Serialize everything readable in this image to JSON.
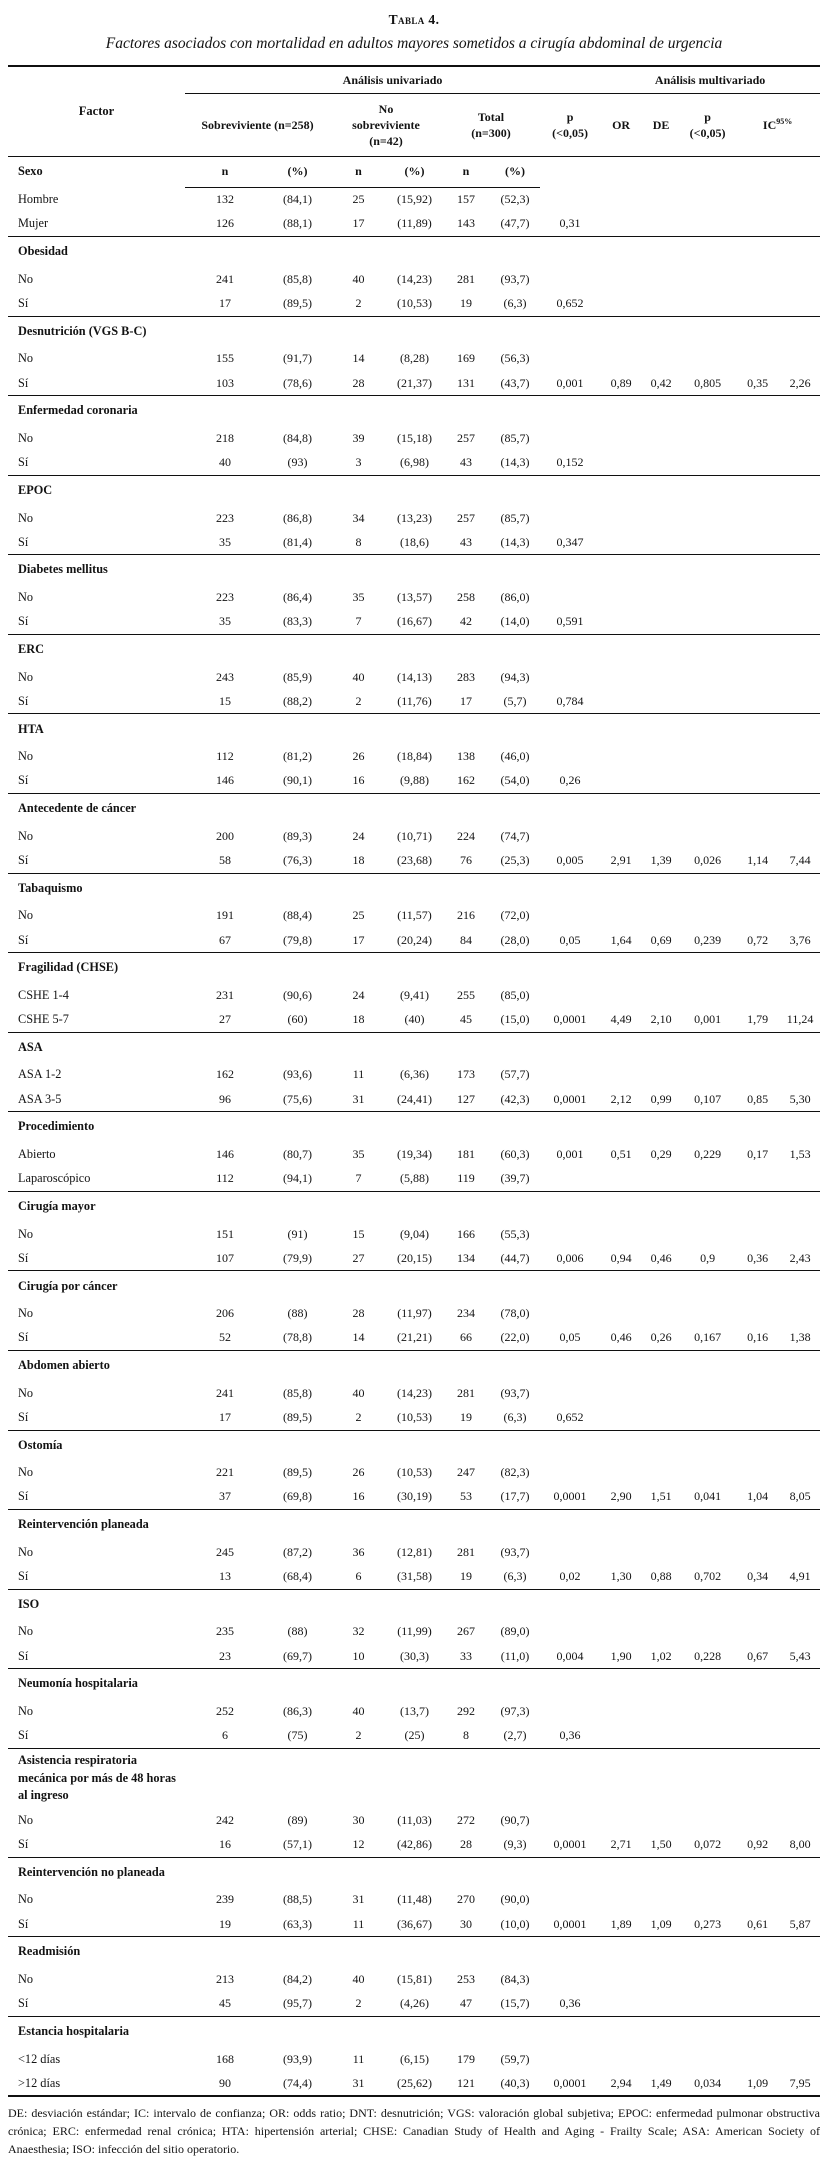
{
  "title": "Tabla 4.",
  "subtitle": "Factores asociados con mortalidad en adultos mayores sometidos a cirugía abdominal de urgencia",
  "header": {
    "factor": "Factor",
    "group_univariate": "Análisis univariado",
    "group_multivariate": "Análisis multivariado",
    "col_survivor": "Sobreviviente (n=258)",
    "col_nonsurvivor": "No\nsobreviviente\n(n=42)",
    "col_total": "Total\n(n=300)",
    "col_p_uni": "p\n(<0,05)",
    "col_or": "OR",
    "col_de": "DE",
    "col_p_multi": "p\n(<0,05)",
    "col_ic": "IC",
    "col_ic_sup": "95%",
    "sub_n": "n",
    "sub_pct": "(%)"
  },
  "sections": [
    {
      "name": "Sexo",
      "rows": [
        {
          "label": "Hombre",
          "cells": [
            "132",
            "(84,1)",
            "25",
            "(15,92)",
            "157",
            "(52,3)"
          ]
        },
        {
          "label": "Mujer",
          "cells": [
            "126",
            "(88,1)",
            "17",
            "(11,89)",
            "143",
            "(47,7)",
            "0,31"
          ]
        }
      ]
    },
    {
      "name": "Obesidad",
      "rows": [
        {
          "label": "No",
          "cells": [
            "241",
            "(85,8)",
            "40",
            "(14,23)",
            "281",
            "(93,7)"
          ]
        },
        {
          "label": "Sí",
          "cells": [
            "17",
            "(89,5)",
            "2",
            "(10,53)",
            "19",
            "(6,3)",
            "0,652"
          ]
        }
      ]
    },
    {
      "name": "Desnutrición (VGS B-C)",
      "rows": [
        {
          "label": "No",
          "cells": [
            "155",
            "(91,7)",
            "14",
            "(8,28)",
            "169",
            "(56,3)"
          ]
        },
        {
          "label": "Sí",
          "cells": [
            "103",
            "(78,6)",
            "28",
            "(21,37)",
            "131",
            "(43,7)",
            "0,001",
            "0,89",
            "0,42",
            "0,805",
            "0,35",
            "2,26"
          ]
        }
      ]
    },
    {
      "name": "Enfermedad coronaria",
      "rows": [
        {
          "label": "No",
          "cells": [
            "218",
            "(84,8)",
            "39",
            "(15,18)",
            "257",
            "(85,7)"
          ]
        },
        {
          "label": "Sí",
          "cells": [
            "40",
            "(93)",
            "3",
            "(6,98)",
            "43",
            "(14,3)",
            "0,152"
          ]
        }
      ]
    },
    {
      "name": "EPOC",
      "rows": [
        {
          "label": "No",
          "cells": [
            "223",
            "(86,8)",
            "34",
            "(13,23)",
            "257",
            "(85,7)"
          ]
        },
        {
          "label": "Sí",
          "cells": [
            "35",
            "(81,4)",
            "8",
            "(18,6)",
            "43",
            "(14,3)",
            "0,347"
          ]
        }
      ]
    },
    {
      "name": "Diabetes mellitus",
      "rows": [
        {
          "label": "No",
          "cells": [
            "223",
            "(86,4)",
            "35",
            "(13,57)",
            "258",
            "(86,0)"
          ]
        },
        {
          "label": "Sí",
          "cells": [
            "35",
            "(83,3)",
            "7",
            "(16,67)",
            "42",
            "(14,0)",
            "0,591"
          ]
        }
      ]
    },
    {
      "name": "ERC",
      "rows": [
        {
          "label": "No",
          "cells": [
            "243",
            "(85,9)",
            "40",
            "(14,13)",
            "283",
            "(94,3)"
          ]
        },
        {
          "label": "Sí",
          "cells": [
            "15",
            "(88,2)",
            "2",
            "(11,76)",
            "17",
            "(5,7)",
            "0,784"
          ]
        }
      ]
    },
    {
      "name": "HTA",
      "rows": [
        {
          "label": "No",
          "cells": [
            "112",
            "(81,2)",
            "26",
            "(18,84)",
            "138",
            "(46,0)"
          ]
        },
        {
          "label": "Sí",
          "cells": [
            "146",
            "(90,1)",
            "16",
            "(9,88)",
            "162",
            "(54,0)",
            "0,26"
          ]
        }
      ]
    },
    {
      "name": "Antecedente de cáncer",
      "rows": [
        {
          "label": "No",
          "cells": [
            "200",
            "(89,3)",
            "24",
            "(10,71)",
            "224",
            "(74,7)"
          ]
        },
        {
          "label": "Sí",
          "cells": [
            "58",
            "(76,3)",
            "18",
            "(23,68)",
            "76",
            "(25,3)",
            "0,005",
            "2,91",
            "1,39",
            "0,026",
            "1,14",
            "7,44"
          ]
        }
      ]
    },
    {
      "name": "Tabaquismo",
      "rows": [
        {
          "label": "No",
          "cells": [
            "191",
            "(88,4)",
            "25",
            "(11,57)",
            "216",
            "(72,0)"
          ]
        },
        {
          "label": "Sí",
          "cells": [
            "67",
            "(79,8)",
            "17",
            "(20,24)",
            "84",
            "(28,0)",
            "0,05",
            "1,64",
            "0,69",
            "0,239",
            "0,72",
            "3,76"
          ]
        }
      ]
    },
    {
      "name": "Fragilidad (CHSE)",
      "rows": [
        {
          "label": "CSHE 1-4",
          "cells": [
            "231",
            "(90,6)",
            "24",
            "(9,41)",
            "255",
            "(85,0)"
          ]
        },
        {
          "label": "CSHE  5-7",
          "cells": [
            "27",
            "(60)",
            "18",
            "(40)",
            "45",
            "(15,0)",
            "0,0001",
            "4,49",
            "2,10",
            "0,001",
            "1,79",
            "11,24"
          ]
        }
      ]
    },
    {
      "name": "ASA",
      "rows": [
        {
          "label": "ASA 1-2",
          "cells": [
            "162",
            "(93,6)",
            "11",
            "(6,36)",
            "173",
            "(57,7)"
          ]
        },
        {
          "label": "ASA 3-5",
          "cells": [
            "96",
            "(75,6)",
            "31",
            "(24,41)",
            "127",
            "(42,3)",
            "0,0001",
            "2,12",
            "0,99",
            "0,107",
            "0,85",
            "5,30"
          ]
        }
      ]
    },
    {
      "name": "Procedimiento",
      "rows": [
        {
          "label": "Abierto",
          "cells": [
            "146",
            "(80,7)",
            "35",
            "(19,34)",
            "181",
            "(60,3)",
            "0,001",
            "0,51",
            "0,29",
            "0,229",
            "0,17",
            "1,53"
          ]
        },
        {
          "label": "Laparoscópico",
          "cells": [
            "112",
            "(94,1)",
            "7",
            "(5,88)",
            "119",
            "(39,7)"
          ]
        }
      ]
    },
    {
      "name": "Cirugía mayor",
      "rows": [
        {
          "label": "No",
          "cells": [
            "151",
            "(91)",
            "15",
            "(9,04)",
            "166",
            "(55,3)"
          ]
        },
        {
          "label": "Sí",
          "cells": [
            "107",
            "(79,9)",
            "27",
            "(20,15)",
            "134",
            "(44,7)",
            "0,006",
            "0,94",
            "0,46",
            "0,9",
            "0,36",
            "2,43"
          ]
        }
      ]
    },
    {
      "name": "Cirugía por cáncer",
      "rows": [
        {
          "label": "No",
          "cells": [
            "206",
            "(88)",
            "28",
            "(11,97)",
            "234",
            "(78,0)"
          ]
        },
        {
          "label": "Sí",
          "cells": [
            "52",
            "(78,8)",
            "14",
            "(21,21)",
            "66",
            "(22,0)",
            "0,05",
            "0,46",
            "0,26",
            "0,167",
            "0,16",
            "1,38"
          ]
        }
      ]
    },
    {
      "name": "Abdomen abierto",
      "rows": [
        {
          "label": "No",
          "cells": [
            "241",
            "(85,8)",
            "40",
            "(14,23)",
            "281",
            "(93,7)"
          ]
        },
        {
          "label": "Sí",
          "cells": [
            "17",
            "(89,5)",
            "2",
            "(10,53)",
            "19",
            "(6,3)",
            "0,652"
          ]
        }
      ]
    },
    {
      "name": "Ostomía",
      "rows": [
        {
          "label": "No",
          "cells": [
            "221",
            "(89,5)",
            "26",
            "(10,53)",
            "247",
            "(82,3)"
          ]
        },
        {
          "label": "Sí",
          "cells": [
            "37",
            "(69,8)",
            "16",
            "(30,19)",
            "53",
            "(17,7)",
            "0,0001",
            "2,90",
            "1,51",
            "0,041",
            "1,04",
            "8,05"
          ]
        }
      ]
    },
    {
      "name": "Reintervención planeada",
      "rows": [
        {
          "label": "No",
          "cells": [
            "245",
            "(87,2)",
            "36",
            "(12,81)",
            "281",
            "(93,7)"
          ]
        },
        {
          "label": "Sí",
          "cells": [
            "13",
            "(68,4)",
            "6",
            "(31,58)",
            "19",
            "(6,3)",
            "0,02",
            "1,30",
            "0,88",
            "0,702",
            "0,34",
            "4,91"
          ]
        }
      ]
    },
    {
      "name": "ISO",
      "rows": [
        {
          "label": "No",
          "cells": [
            "235",
            "(88)",
            "32",
            "(11,99)",
            "267",
            "(89,0)"
          ]
        },
        {
          "label": "Sí",
          "cells": [
            "23",
            "(69,7)",
            "10",
            "(30,3)",
            "33",
            "(11,0)",
            "0,004",
            "1,90",
            "1,02",
            "0,228",
            "0,67",
            "5,43"
          ]
        }
      ]
    },
    {
      "name": "Neumonía hospitalaria",
      "rows": [
        {
          "label": "No",
          "cells": [
            "252",
            "(86,3)",
            "40",
            "(13,7)",
            "292",
            "(97,3)"
          ]
        },
        {
          "label": "Sí",
          "cells": [
            "6",
            "(75)",
            "2",
            "(25)",
            "8",
            "(2,7)",
            "0,36"
          ]
        }
      ]
    },
    {
      "name": "Asistencia respiratoria mecánica por más de 48 horas al ingreso",
      "rows": [
        {
          "label": "No",
          "cells": [
            "242",
            "(89)",
            "30",
            "(11,03)",
            "272",
            "(90,7)"
          ]
        },
        {
          "label": "Sí",
          "cells": [
            "16",
            "(57,1)",
            "12",
            "(42,86)",
            "28",
            "(9,3)",
            "0,0001",
            "2,71",
            "1,50",
            "0,072",
            "0,92",
            "8,00"
          ]
        }
      ]
    },
    {
      "name": "Reintervención no planeada",
      "rows": [
        {
          "label": "No",
          "cells": [
            "239",
            "(88,5)",
            "31",
            "(11,48)",
            "270",
            "(90,0)"
          ]
        },
        {
          "label": "Sí",
          "cells": [
            "19",
            "(63,3)",
            "11",
            "(36,67)",
            "30",
            "(10,0)",
            "0,0001",
            "1,89",
            "1,09",
            "0,273",
            "0,61",
            "5,87"
          ]
        }
      ]
    },
    {
      "name": "Readmisión",
      "rows": [
        {
          "label": "No",
          "cells": [
            "213",
            "(84,2)",
            "40",
            "(15,81)",
            "253",
            "(84,3)"
          ]
        },
        {
          "label": "Sí",
          "cells": [
            "45",
            "(95,7)",
            "2",
            "(4,26)",
            "47",
            "(15,7)",
            "0,36"
          ]
        }
      ]
    },
    {
      "name": "Estancia hospitalaria",
      "rows": [
        {
          "label": "<12 días",
          "cells": [
            "168",
            "(93,9)",
            "11",
            "(6,15)",
            "179",
            "(59,7)"
          ]
        },
        {
          "label": ">12 días",
          "cells": [
            "90",
            "(74,4)",
            "31",
            "(25,62)",
            "121",
            "(40,3)",
            "0,0001",
            "2,94",
            "1,49",
            "0,034",
            "1,09",
            "7,95"
          ]
        }
      ]
    }
  ],
  "footnote": "DE: desviación estándar; IC: intervalo de confianza; OR: odds ratio; DNT: desnutrición; VGS: valoración global subjetiva; EPOC: enfermedad pulmonar obstructiva crónica; ERC: enfermedad renal crónica; HTA: hipertensión arterial; CHSE: Canadian Study of Health and Aging - Frailty Scale; ASA: American Society of Anaesthesia; ISO: infección del sitio operatorio."
}
